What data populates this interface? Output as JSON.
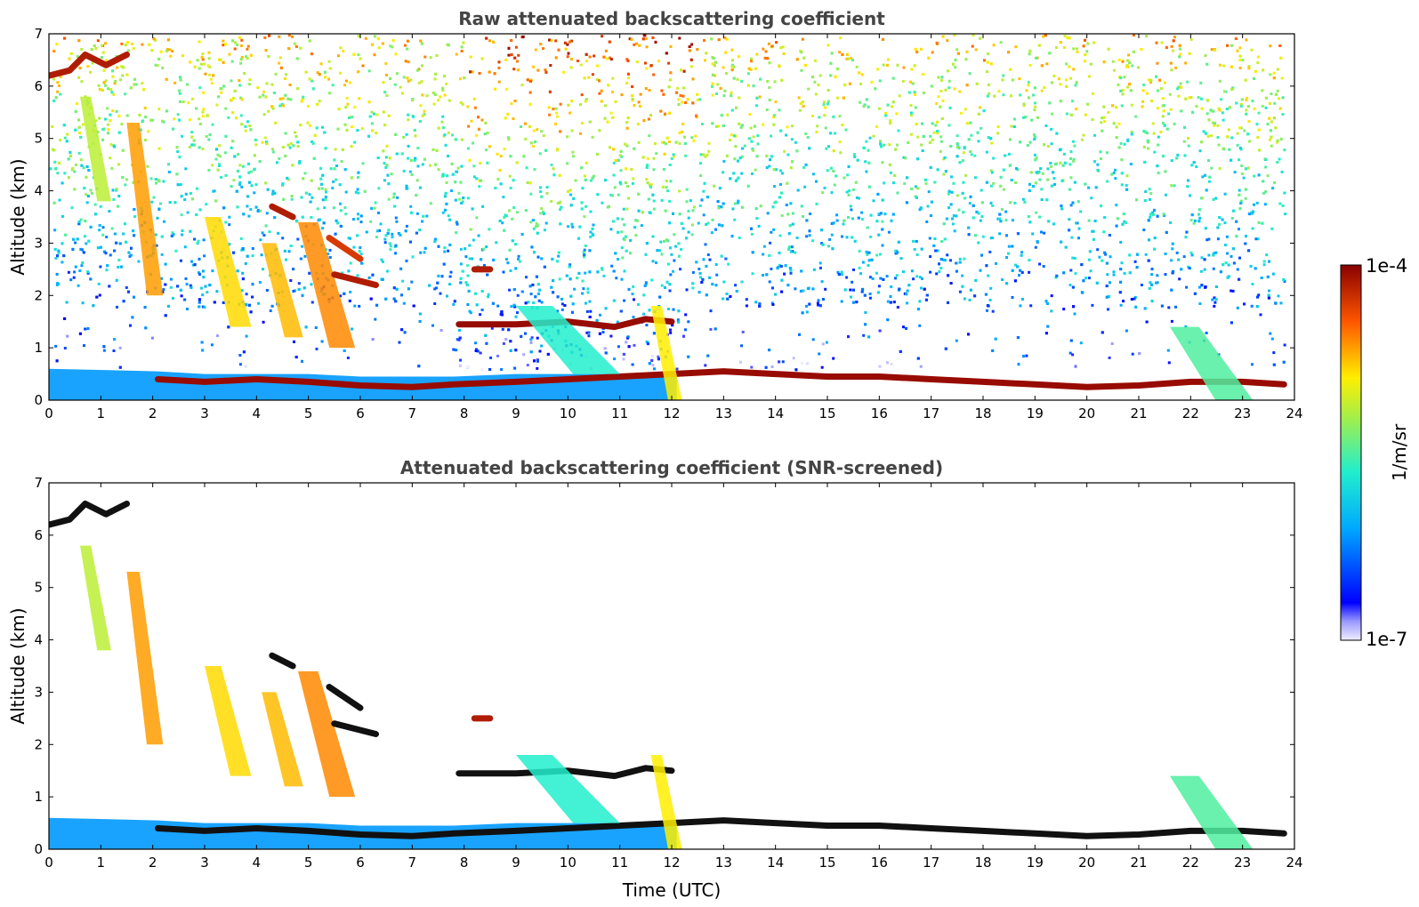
{
  "figure": {
    "colorbar": {
      "max_label": "1e-4",
      "min_label": "1e-7",
      "unit_label": "1/m/sr",
      "range": [
        1e-07,
        0.0001
      ],
      "scale": "log",
      "colormap": "jet"
    },
    "xlabel": "Time (UTC)"
  },
  "chart_data": [
    {
      "type": "heatmap",
      "title": "Raw attenuated backscattering coefficient",
      "xlabel": "",
      "ylabel": "Altitude (km)",
      "xlim": [
        0,
        24
      ],
      "ylim": [
        0,
        7
      ],
      "xticks": [
        "0",
        "1",
        "2",
        "3",
        "4",
        "5",
        "6",
        "7",
        "8",
        "9",
        "10",
        "11",
        "12",
        "13",
        "14",
        "15",
        "16",
        "17",
        "18",
        "19",
        "20",
        "21",
        "22",
        "23",
        "24"
      ],
      "yticks": [
        "0",
        "1",
        "2",
        "3",
        "4",
        "5",
        "6",
        "7"
      ],
      "grid": false,
      "background": "noise",
      "features": [
        {
          "name": "surface layer",
          "kind": "ribbon",
          "x": [
            0,
            2.1,
            3,
            4,
            5,
            6,
            7,
            7.8,
            9,
            10,
            11,
            12.1
          ],
          "y0": [
            0,
            0,
            0,
            0,
            0,
            0,
            0,
            0,
            0,
            0,
            0,
            0
          ],
          "y1": [
            0.6,
            0.55,
            0.5,
            0.5,
            0.5,
            0.45,
            0.45,
            0.45,
            0.5,
            0.5,
            0.5,
            0.5
          ],
          "level": 0.28
        },
        {
          "name": "boundary layer top",
          "kind": "line",
          "x": [
            2.1,
            3,
            4,
            5,
            6,
            7,
            7.8,
            9,
            10,
            11,
            12,
            13,
            14,
            15,
            16,
            17,
            18,
            19,
            20,
            21,
            22,
            23,
            23.8
          ],
          "y": [
            0.4,
            0.35,
            0.4,
            0.35,
            0.28,
            0.25,
            0.3,
            0.35,
            0.4,
            0.45,
            0.5,
            0.55,
            0.5,
            0.45,
            0.45,
            0.4,
            0.35,
            0.3,
            0.25,
            0.28,
            0.35,
            0.35,
            0.3
          ],
          "level": 0.98
        },
        {
          "name": "cirrus 6.5 km",
          "kind": "line",
          "x": [
            0,
            0.4,
            0.7,
            1.1,
            1.5
          ],
          "y": [
            6.2,
            6.3,
            6.6,
            6.4,
            6.6
          ],
          "level": 0.95
        },
        {
          "name": "fall streak 1",
          "kind": "streak",
          "x0": 0.6,
          "x1": 1.2,
          "top": 5.8,
          "bottom": 3.8,
          "level": 0.62
        },
        {
          "name": "fall streak 2",
          "kind": "streak",
          "x0": 1.5,
          "x1": 2.2,
          "top": 5.3,
          "bottom": 2.0,
          "level": 0.78
        },
        {
          "name": "fall streak 3",
          "kind": "streak",
          "x0": 3.0,
          "x1": 3.9,
          "top": 3.5,
          "bottom": 1.4,
          "level": 0.72
        },
        {
          "name": "fall streak 4",
          "kind": "streak",
          "x0": 4.1,
          "x1": 4.9,
          "top": 3.0,
          "bottom": 1.2,
          "level": 0.75
        },
        {
          "name": "fall streak 5",
          "kind": "streak",
          "x0": 4.8,
          "x1": 5.9,
          "top": 3.4,
          "bottom": 1.0,
          "level": 0.8
        },
        {
          "name": "elevated layer 3.7 km",
          "kind": "line",
          "x": [
            4.3,
            4.7
          ],
          "y": [
            3.7,
            3.5
          ],
          "level": 0.95
        },
        {
          "name": "elevated layer 3.1 km",
          "kind": "line",
          "x": [
            5.4,
            6.0
          ],
          "y": [
            3.1,
            2.7
          ],
          "level": 0.9
        },
        {
          "name": "elevated layer 2.4 km",
          "kind": "line",
          "x": [
            5.5,
            6.3
          ],
          "y": [
            2.4,
            2.2
          ],
          "level": 0.95
        },
        {
          "name": "elevated layer 2.5 km",
          "kind": "line",
          "x": [
            8.2,
            8.5
          ],
          "y": [
            2.5,
            2.5
          ],
          "level": 0.95
        },
        {
          "name": "elevated layer 1.4 km",
          "kind": "line",
          "x": [
            7.9,
            9,
            10,
            10.9,
            11.5,
            12.0
          ],
          "y": [
            1.45,
            1.45,
            1.5,
            1.4,
            1.55,
            1.5
          ],
          "level": 0.98
        },
        {
          "name": "cloud 10 to 11 km",
          "kind": "streak",
          "x0": 9.0,
          "x1": 11.0,
          "top": 1.8,
          "bottom": 0.5,
          "level": 0.45
        },
        {
          "name": "cloud 12 km",
          "kind": "streak",
          "x0": 11.6,
          "x1": 12.2,
          "top": 1.8,
          "bottom": 0.0,
          "level": 0.7
        },
        {
          "name": "mixed layer 22 km",
          "kind": "streak",
          "x0": 21.6,
          "x1": 23.2,
          "top": 1.4,
          "bottom": 0.0,
          "level": 0.5
        }
      ]
    },
    {
      "type": "heatmap",
      "title": "Attenuated backscattering coefficient (SNR-screened)",
      "xlabel": "Time (UTC)",
      "ylabel": "Altitude (km)",
      "xlim": [
        0,
        24
      ],
      "ylim": [
        0,
        7
      ],
      "xticks": [
        "0",
        "1",
        "2",
        "3",
        "4",
        "5",
        "6",
        "7",
        "8",
        "9",
        "10",
        "11",
        "12",
        "13",
        "14",
        "15",
        "16",
        "17",
        "18",
        "19",
        "20",
        "21",
        "22",
        "23",
        "24"
      ],
      "yticks": [
        "0",
        "1",
        "2",
        "3",
        "4",
        "5",
        "6",
        "7"
      ],
      "grid": false,
      "background": "none",
      "features": [
        {
          "name": "surface layer",
          "kind": "ribbon",
          "x": [
            0,
            2.1,
            3,
            4,
            5,
            6,
            7,
            7.8,
            9,
            10,
            11,
            12.1
          ],
          "y0": [
            0,
            0,
            0,
            0,
            0,
            0,
            0,
            0,
            0,
            0,
            0,
            0
          ],
          "y1": [
            0.6,
            0.55,
            0.5,
            0.5,
            0.5,
            0.45,
            0.45,
            0.45,
            0.5,
            0.5,
            0.5,
            0.5
          ],
          "level": 0.28
        },
        {
          "name": "boundary layer top",
          "kind": "line",
          "x": [
            2.1,
            3,
            4,
            5,
            6,
            7,
            7.8,
            9,
            10,
            11,
            12,
            13,
            14,
            15,
            16,
            17,
            18,
            19,
            20,
            21,
            22,
            23,
            23.8
          ],
          "y": [
            0.4,
            0.35,
            0.4,
            0.35,
            0.28,
            0.25,
            0.3,
            0.35,
            0.4,
            0.45,
            0.5,
            0.55,
            0.5,
            0.45,
            0.45,
            0.4,
            0.35,
            0.3,
            0.25,
            0.28,
            0.35,
            0.35,
            0.3
          ],
          "level": 1.0
        },
        {
          "name": "cirrus 6.5 km",
          "kind": "line",
          "x": [
            0,
            0.4,
            0.7,
            1.1,
            1.5
          ],
          "y": [
            6.2,
            6.3,
            6.6,
            6.4,
            6.6
          ],
          "level": 1.0
        },
        {
          "name": "fall streak 1",
          "kind": "streak",
          "x0": 0.6,
          "x1": 1.2,
          "top": 5.8,
          "bottom": 3.8,
          "level": 0.62
        },
        {
          "name": "fall streak 2",
          "kind": "streak",
          "x0": 1.5,
          "x1": 2.2,
          "top": 5.3,
          "bottom": 2.0,
          "level": 0.78
        },
        {
          "name": "fall streak 3",
          "kind": "streak",
          "x0": 3.0,
          "x1": 3.9,
          "top": 3.5,
          "bottom": 1.4,
          "level": 0.72
        },
        {
          "name": "fall streak 4",
          "kind": "streak",
          "x0": 4.1,
          "x1": 4.9,
          "top": 3.0,
          "bottom": 1.2,
          "level": 0.75
        },
        {
          "name": "fall streak 5",
          "kind": "streak",
          "x0": 4.8,
          "x1": 5.9,
          "top": 3.4,
          "bottom": 1.0,
          "level": 0.8
        },
        {
          "name": "elevated layer 3.7 km",
          "kind": "line",
          "x": [
            4.3,
            4.7
          ],
          "y": [
            3.7,
            3.5
          ],
          "level": 1.0
        },
        {
          "name": "elevated layer 3.1 km",
          "kind": "line",
          "x": [
            5.4,
            6.0
          ],
          "y": [
            3.1,
            2.7
          ],
          "level": 1.0
        },
        {
          "name": "elevated layer 2.4 km",
          "kind": "line",
          "x": [
            5.5,
            6.3
          ],
          "y": [
            2.4,
            2.2
          ],
          "level": 1.0
        },
        {
          "name": "elevated layer 2.5 km",
          "kind": "line",
          "x": [
            8.2,
            8.5
          ],
          "y": [
            2.5,
            2.5
          ],
          "level": 0.95
        },
        {
          "name": "elevated layer 1.4 km",
          "kind": "line",
          "x": [
            7.9,
            9,
            10,
            10.9,
            11.5,
            12.0
          ],
          "y": [
            1.45,
            1.45,
            1.5,
            1.4,
            1.55,
            1.5
          ],
          "level": 1.0
        },
        {
          "name": "cloud 10 to 11 km",
          "kind": "streak",
          "x0": 9.0,
          "x1": 11.0,
          "top": 1.8,
          "bottom": 0.5,
          "level": 0.45
        },
        {
          "name": "cloud 12 km",
          "kind": "streak",
          "x0": 11.6,
          "x1": 12.2,
          "top": 1.8,
          "bottom": 0.0,
          "level": 0.7
        },
        {
          "name": "mixed layer 22 km",
          "kind": "streak",
          "x0": 21.6,
          "x1": 23.2,
          "top": 1.4,
          "bottom": 0.0,
          "level": 0.5
        }
      ]
    }
  ]
}
